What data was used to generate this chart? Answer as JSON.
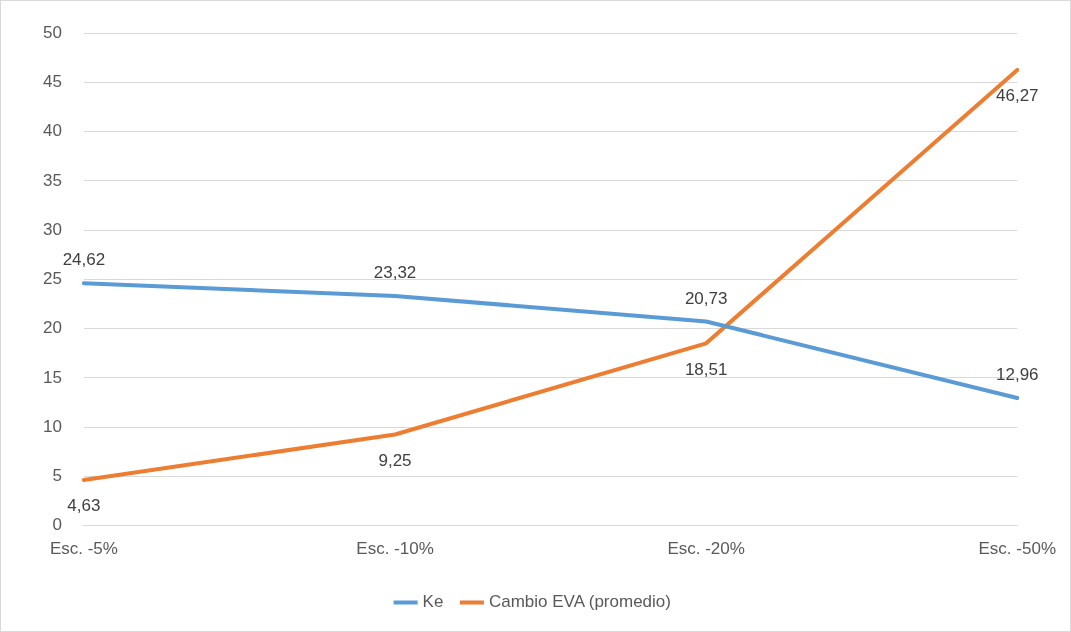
{
  "chart_data": {
    "type": "line",
    "categories": [
      "Esc. -5%",
      "Esc. -10%",
      "Esc. -20%",
      "Esc. -50%"
    ],
    "series": [
      {
        "name": "Ke",
        "color": "#5b9bd5",
        "values": [
          24.62,
          23.32,
          20.73,
          12.96
        ],
        "value_labels": [
          "24,62",
          "23,32",
          "20,73",
          "12,96"
        ]
      },
      {
        "name": "Cambio EVA (promedio)",
        "color": "#ed7d31",
        "values": [
          4.63,
          9.25,
          18.51,
          46.27
        ],
        "value_labels": [
          "4,63",
          "9,25",
          "18,51",
          "46,27"
        ]
      }
    ],
    "ylim": [
      0,
      50
    ],
    "yticks": [
      0,
      5,
      10,
      15,
      20,
      25,
      30,
      35,
      40,
      45,
      50
    ],
    "grid": "y",
    "legend": "bottom",
    "marker": "none",
    "line_style": "solid"
  }
}
